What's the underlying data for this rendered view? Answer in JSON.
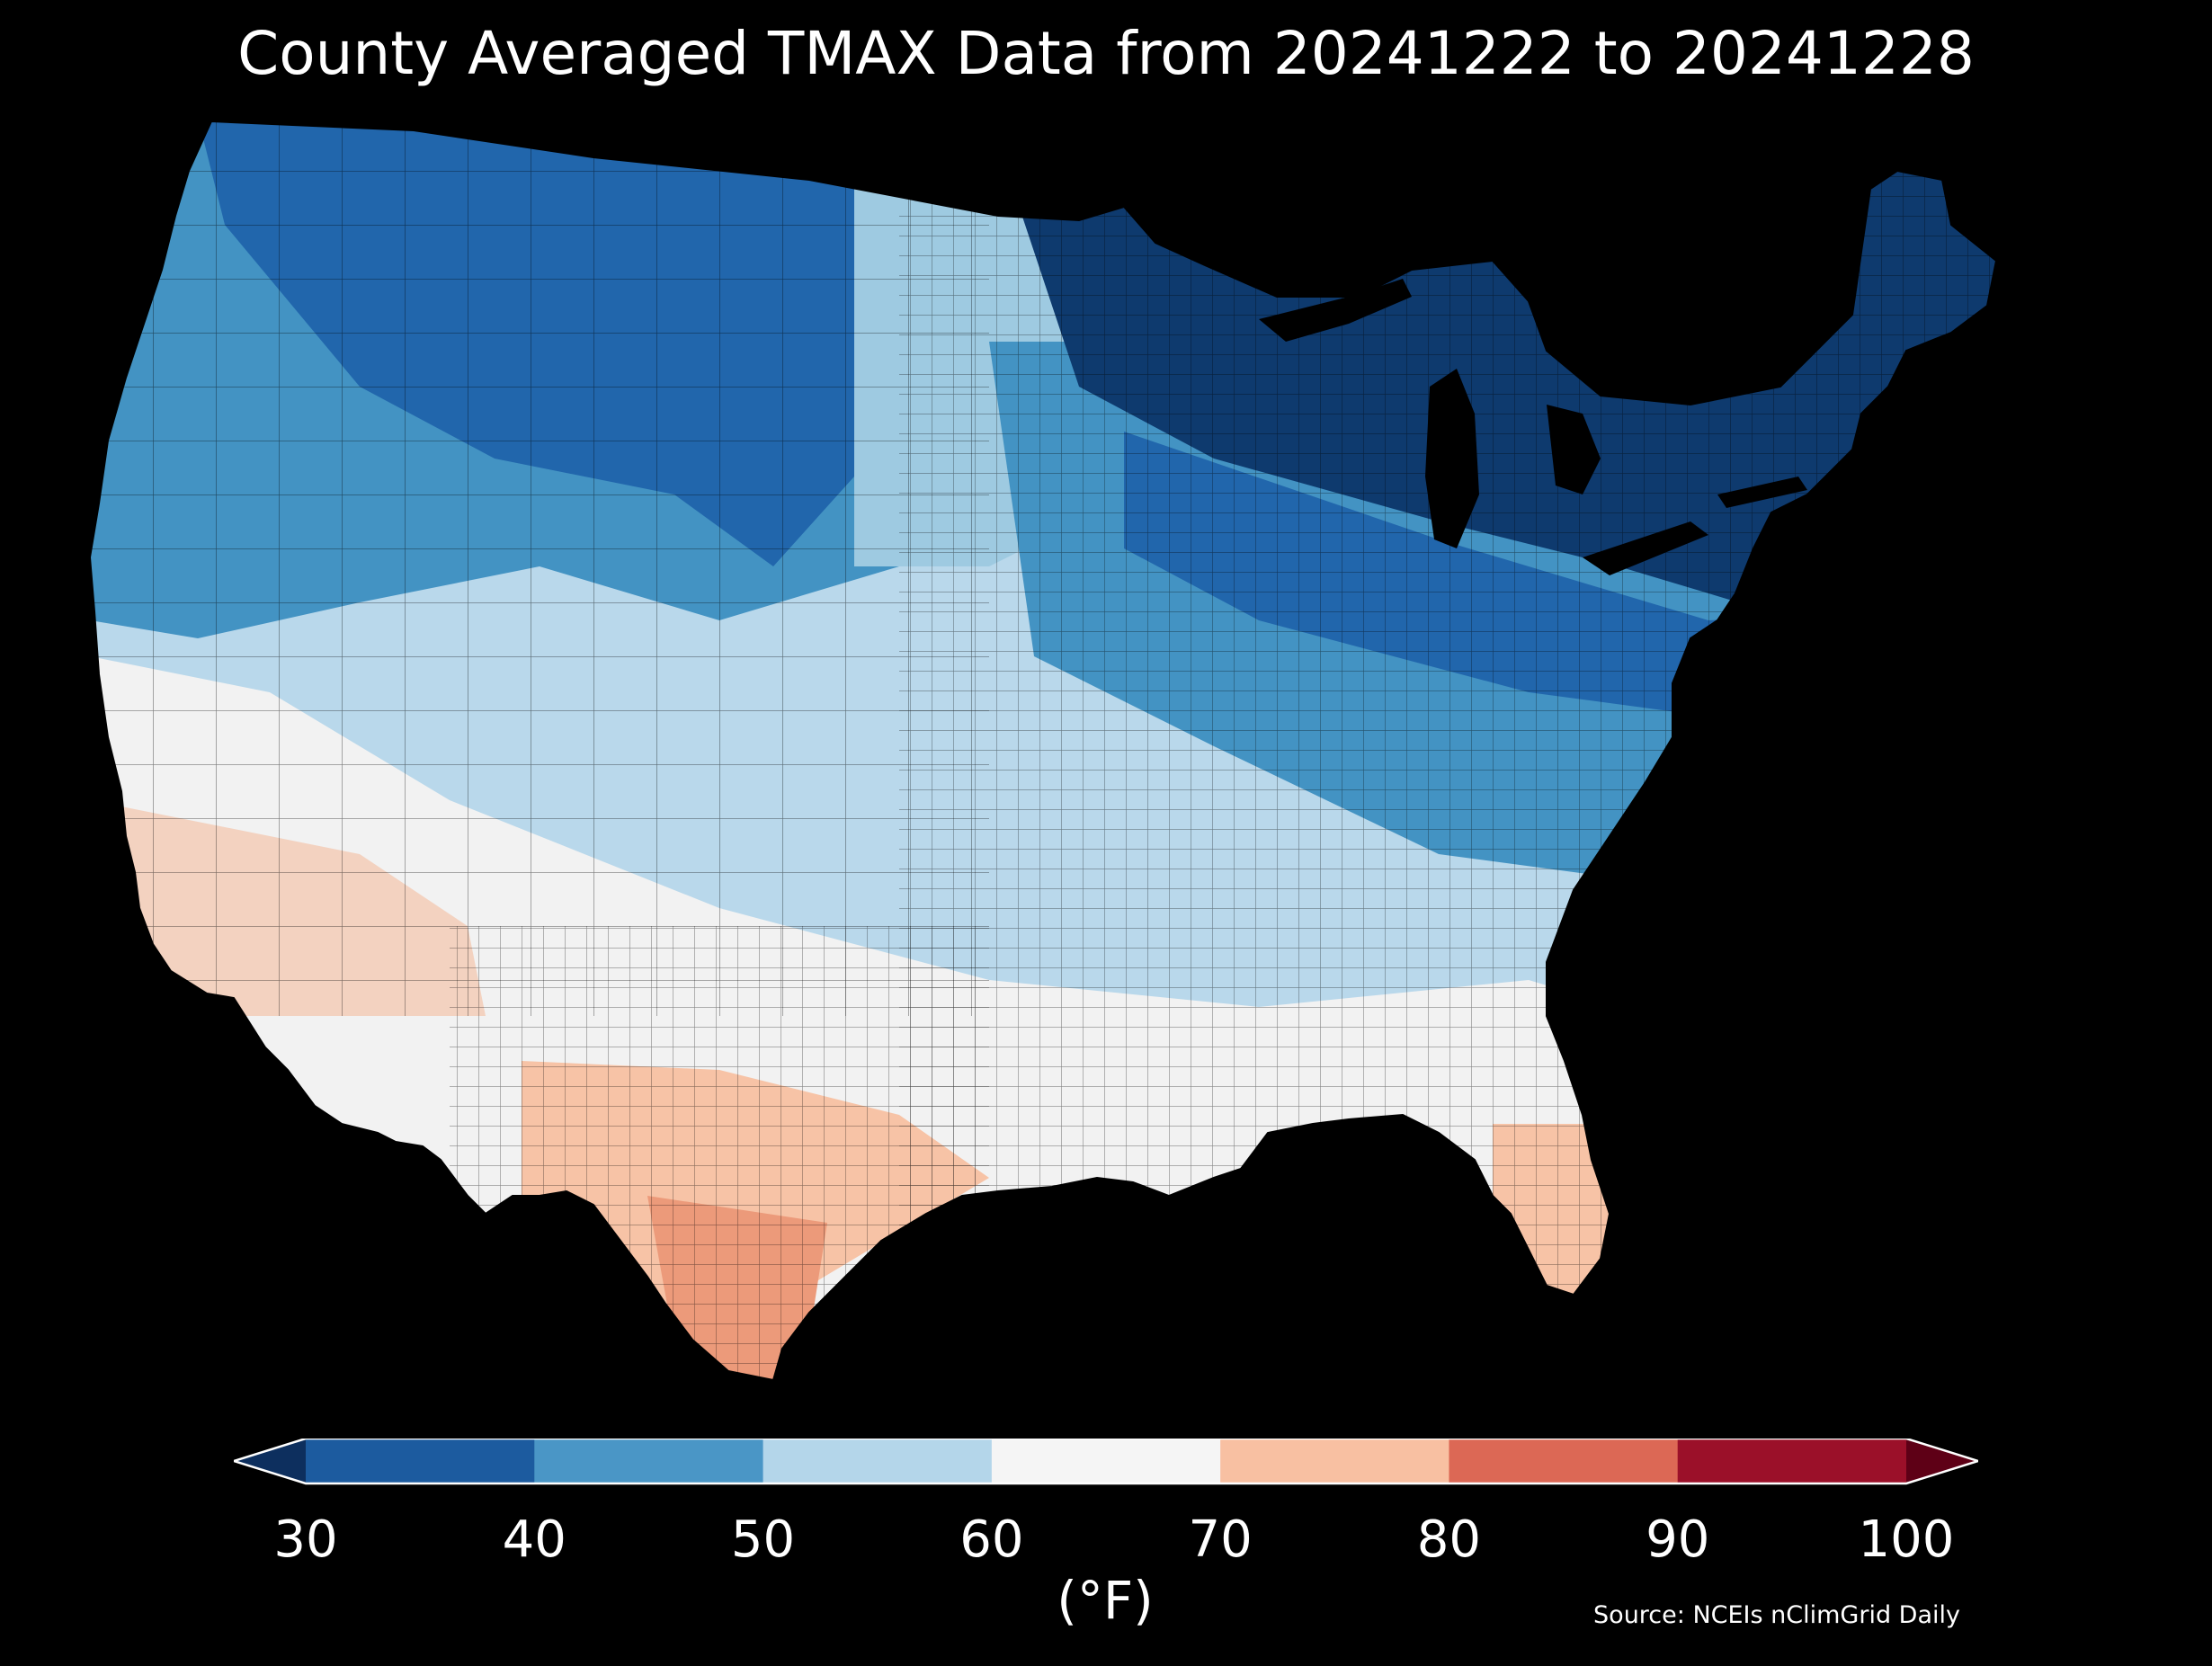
{
  "title": "County Averaged TMAX Data from 20241222 to 20241228",
  "colorbar": {
    "ticks": [
      "30",
      "40",
      "50",
      "60",
      "70",
      "80",
      "90",
      "100"
    ],
    "bins": [
      {
        "range": [
          30,
          40
        ],
        "color": "#1c5b9f"
      },
      {
        "range": [
          40,
          50
        ],
        "color": "#4a96c6"
      },
      {
        "range": [
          50,
          60
        ],
        "color": "#b4d6ea"
      },
      {
        "range": [
          60,
          70
        ],
        "color": "#f5f5f5"
      },
      {
        "range": [
          70,
          80
        ],
        "color": "#f8c0a2"
      },
      {
        "range": [
          80,
          90
        ],
        "color": "#dc6855"
      },
      {
        "range": [
          90,
          100
        ],
        "color": "#9b1029"
      }
    ],
    "under_color": "#0d2f5e",
    "over_color": "#5e0016",
    "unit": "(°F)"
  },
  "source": "Source: NCEIs nClimGrid Daily",
  "map": {
    "region": "contiguous-us-counties",
    "variable": "TMAX",
    "pattern": [
      {
        "area": "northern-plains-upper-midwest-great-lakes-northeast",
        "color": "#0e3a6e"
      },
      {
        "area": "northern-rockies-colorado",
        "color": "#2166ac"
      },
      {
        "area": "pacific-northwest-great-basin-central-plains-ohio-valley",
        "color": "#4393c3"
      },
      {
        "area": "california-nevada-southern-plains-southeast",
        "color": "#b9d8eb"
      },
      {
        "area": "southern-california-gulf-coast",
        "color": "#f2f2f2"
      },
      {
        "area": "arizona-south-texas-florida",
        "color": "#f7c3a6"
      },
      {
        "area": "rio-grande-valley-south-florida",
        "color": "#ec9a7a"
      }
    ]
  }
}
